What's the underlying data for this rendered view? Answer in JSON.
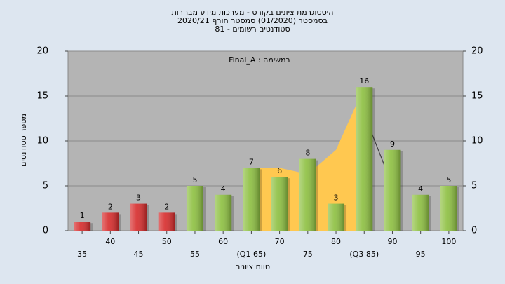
{
  "chart_data": {
    "type": "bar",
    "title": [
      "היסטוגרמת ציונים בקורס - מערכות מידע מבחרות",
      "בסמסטר  (01/2020)  סמסטר חורף 2020/21",
      "סטודנטים רשומים - 81"
    ],
    "annotation": "במשימה : Final_A",
    "xlabel": "טווח ציונים",
    "ylabel": "מספר סטודנטים",
    "categories": [
      "35",
      "40",
      "45",
      "50",
      "55",
      "60",
      "(Q1 65)",
      "70",
      "75",
      "80",
      "(Q3 85)",
      "90",
      "95",
      "100"
    ],
    "values": [
      1,
      2,
      3,
      2,
      5,
      4,
      7,
      6,
      8,
      3,
      16,
      9,
      4,
      5
    ],
    "colors": [
      "#d62a2a",
      "#d62a2a",
      "#d62a2a",
      "#d62a2a",
      "#8cbf3f",
      "#8cbf3f",
      "#8cbf3f",
      "#8cbf3f",
      "#8cbf3f",
      "#8cbf3f",
      "#8cbf3f",
      "#8cbf3f",
      "#8cbf3f",
      "#8cbf3f"
    ],
    "area_values": [
      null,
      null,
      null,
      null,
      null,
      null,
      7,
      7,
      6.3,
      9,
      16,
      null,
      null,
      null
    ],
    "area_color": "#ffc850",
    "line_values": [
      null,
      null,
      null,
      null,
      null,
      null,
      null,
      null,
      null,
      null,
      13,
      5,
      null,
      null
    ],
    "line_color": "#404040",
    "ylim": [
      0,
      20
    ],
    "yticks": [
      0,
      5,
      10,
      15,
      20
    ],
    "y2lim": [
      0,
      20
    ],
    "y2ticks": [
      0,
      5,
      10,
      15,
      20
    ],
    "grid": true
  }
}
